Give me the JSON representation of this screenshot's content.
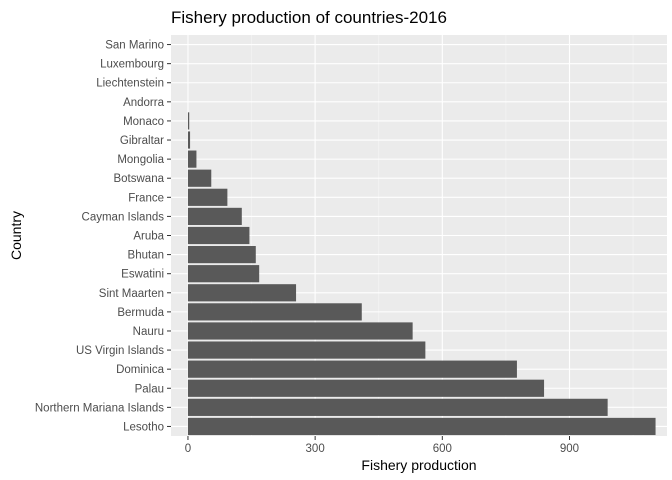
{
  "colors": {
    "panel": "#ebebeb",
    "grid_major": "#ffffff",
    "grid_minor": "#f5f5f5",
    "bar": "#595959",
    "tick": "#333333"
  },
  "chart_data": {
    "type": "bar",
    "orientation": "horizontal",
    "title": "Fishery production of countries-2016",
    "xlabel": "Fishery production",
    "ylabel": "Country",
    "xlim": [
      -40,
      1130
    ],
    "xticks": [
      0,
      300,
      600,
      900
    ],
    "grid": true,
    "categories": [
      "Lesotho",
      "Northern Mariana Islands",
      "Palau",
      "Dominica",
      "US Virgin Islands",
      "Nauru",
      "Bermuda",
      "Sint Maarten",
      "Eswatini",
      "Bhutan",
      "Aruba",
      "Cayman Islands",
      "France",
      "Botswana",
      "Mongolia",
      "Gibraltar",
      "Monaco",
      "Andorra",
      "Liechtenstein",
      "Luxembourg",
      "San Marino"
    ],
    "values": [
      1103,
      990,
      840,
      776,
      560,
      530,
      410,
      255,
      168,
      160,
      145,
      127,
      93,
      55,
      20,
      5,
      3,
      0,
      0,
      0,
      0
    ]
  }
}
